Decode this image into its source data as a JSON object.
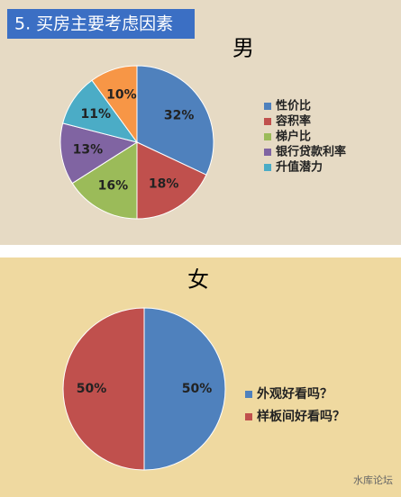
{
  "chart_data": [
    {
      "type": "pie",
      "title": "5. 买房主要考虑因素",
      "subtitle": "男",
      "categories": [
        "性价比",
        "容积率",
        "梯户比",
        "银行贷款利率",
        "升值潜力",
        null
      ],
      "values": [
        32,
        18,
        16,
        13,
        11,
        10
      ],
      "value_labels": [
        "32%",
        "18%",
        "16%",
        "13%",
        "11%",
        "10%"
      ],
      "colors": [
        "#4f81bd",
        "#c0504d",
        "#9bbb59",
        "#8064a2",
        "#4bacc6",
        "#f79646"
      ]
    },
    {
      "type": "pie",
      "subtitle": "女",
      "categories": [
        "外观好看吗？",
        "样板间好看吗？"
      ],
      "values": [
        50,
        50
      ],
      "value_labels": [
        "50%",
        "50%"
      ],
      "colors": [
        "#4f81bd",
        "#c0504d"
      ]
    }
  ],
  "watermark": "水库论坛"
}
